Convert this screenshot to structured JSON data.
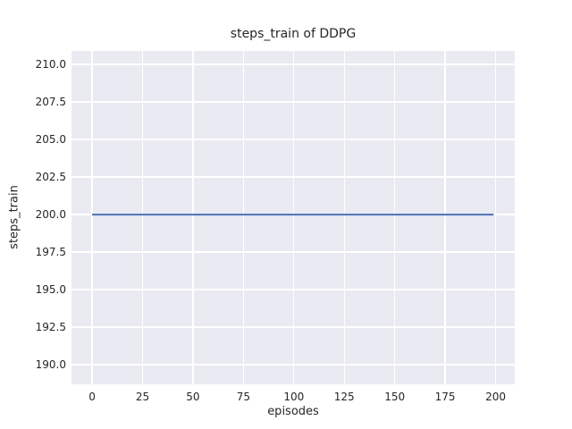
{
  "figure": {
    "bg_color": "#ffffff"
  },
  "chart_data": {
    "type": "line",
    "title": "steps_train of DDPG",
    "xlabel": "episodes",
    "ylabel": "steps_train",
    "xlim": [
      -10.2,
      209.5
    ],
    "ylim": [
      188.7,
      210.9
    ],
    "xticks": [
      0,
      25,
      50,
      75,
      100,
      125,
      150,
      175,
      200
    ],
    "xtick_labels": [
      "0",
      "25",
      "50",
      "75",
      "100",
      "125",
      "150",
      "175",
      "200"
    ],
    "yticks": [
      190.0,
      192.5,
      195.0,
      197.5,
      200.0,
      202.5,
      205.0,
      207.5,
      210.0
    ],
    "ytick_labels": [
      "190.0",
      "192.5",
      "195.0",
      "197.5",
      "200.0",
      "202.5",
      "205.0",
      "207.5",
      "210.0"
    ],
    "grid": true,
    "legend": false,
    "series": [
      {
        "name": "steps_train",
        "color": "#4c72b0",
        "line_width": 2,
        "x": [
          0,
          199
        ],
        "y": [
          200,
          200
        ],
        "description": "constant horizontal line at steps_train = 200 from episode 0 to episode 199"
      }
    ],
    "style": {
      "plot_bg": "#eaeaf2",
      "grid_color": "#ffffff",
      "text_color": "#262626"
    }
  }
}
